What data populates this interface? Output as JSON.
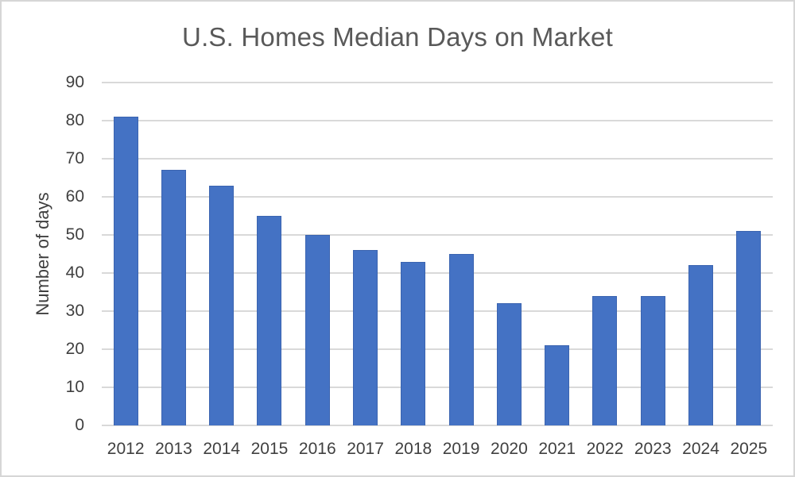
{
  "chart_data": {
    "type": "bar",
    "title": "U.S. Homes Median Days on Market",
    "xlabel": "",
    "ylabel": "Number of days",
    "categories": [
      "2012",
      "2013",
      "2014",
      "2015",
      "2016",
      "2017",
      "2018",
      "2019",
      "2020",
      "2021",
      "2022",
      "2023",
      "2024",
      "2025"
    ],
    "values": [
      81,
      67,
      63,
      55,
      50,
      46,
      43,
      45,
      32,
      21,
      34,
      34,
      42,
      51
    ],
    "ylim": [
      0,
      90
    ],
    "yticks": [
      0,
      10,
      20,
      30,
      40,
      50,
      60,
      70,
      80,
      90
    ],
    "grid": "horizontal",
    "legend_position": "none",
    "colors": {
      "bar_fill": "#4472C4",
      "bar_edge": "#3B64B0",
      "gridline": "#D9D9D9",
      "axis_text": "#404040",
      "title_text": "#595959",
      "frame_border": "#D6D6D6",
      "background": "#FFFFFF"
    }
  }
}
